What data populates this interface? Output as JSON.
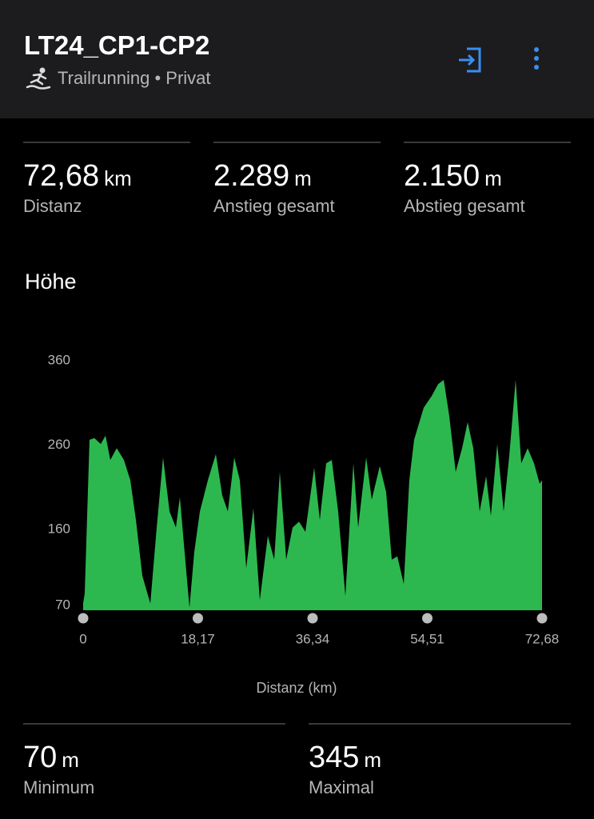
{
  "header": {
    "title": "LT24_CP1-CP2",
    "subtitle": "Trailrunning • Privat"
  },
  "stats": [
    {
      "value": "72,68",
      "unit": "km",
      "label": "Distanz"
    },
    {
      "value": "2.289",
      "unit": "m",
      "label": "Anstieg gesamt"
    },
    {
      "value": "2.150",
      "unit": "m",
      "label": "Abstieg gesamt"
    }
  ],
  "chart_data": {
    "type": "area",
    "title": "Höhe",
    "x_label": "Distanz (km)",
    "color": "#2db84f",
    "x": [
      0,
      0.25,
      1.01,
      1.77,
      2.79,
      3.55,
      4.3,
      5.32,
      6.46,
      7.47,
      8.36,
      9.37,
      10.64,
      11.65,
      12.66,
      13.68,
      14.69,
      15.32,
      15.95,
      16.84,
      17.6,
      18.49,
      19.75,
      21.02,
      22.03,
      22.92,
      23.93,
      24.82,
      25.83,
      26.97,
      27.98,
      29.25,
      30.26,
      31.15,
      32.16,
      33.17,
      34.19,
      35.2,
      36.59,
      37.48,
      38.49,
      39.38,
      40.39,
      41.53,
      42.8,
      43.56,
      44.83,
      45.71,
      46.98,
      47.99,
      48.88,
      49.76,
      50.78,
      51.66,
      52.42,
      53.94,
      55.21,
      56.22,
      57.11,
      57.99,
      59.0,
      60.02,
      60.9,
      61.79,
      62.8,
      63.82,
      64.58,
      65.59,
      66.6,
      67.49,
      68.5,
      69.39,
      70.4,
      71.41,
      72.3,
      72.68
    ],
    "values": [
      78,
      90,
      272,
      274,
      267,
      277,
      248,
      262,
      248,
      224,
      177,
      111,
      78,
      168,
      251,
      187,
      168,
      204,
      149,
      73,
      139,
      187,
      224,
      255,
      206,
      187,
      251,
      224,
      120,
      191,
      82,
      158,
      130,
      234,
      130,
      168,
      175,
      163,
      239,
      177,
      244,
      248,
      187,
      87,
      244,
      168,
      251,
      201,
      241,
      210,
      130,
      134,
      101,
      224,
      272,
      310,
      324,
      338,
      343,
      300,
      234,
      262,
      293,
      262,
      187,
      229,
      182,
      267,
      187,
      253,
      343,
      244,
      262,
      244,
      220,
      224
    ],
    "xlim": [
      0,
      72.68
    ],
    "xticks": [
      0,
      {
        "value": 18.17,
        "label": "18,17"
      },
      {
        "value": 36.34,
        "label": "36,34"
      },
      {
        "value": 54.51,
        "label": "54,51"
      },
      {
        "value": 72.68,
        "label": "72,68"
      }
    ],
    "ylim": [
      70,
      360
    ],
    "yticks": [
      70,
      160,
      260,
      360
    ]
  },
  "summary": [
    {
      "value": "70",
      "unit": "m",
      "label": "Minimum"
    },
    {
      "value": "345",
      "unit": "m",
      "label": "Maximal"
    }
  ]
}
